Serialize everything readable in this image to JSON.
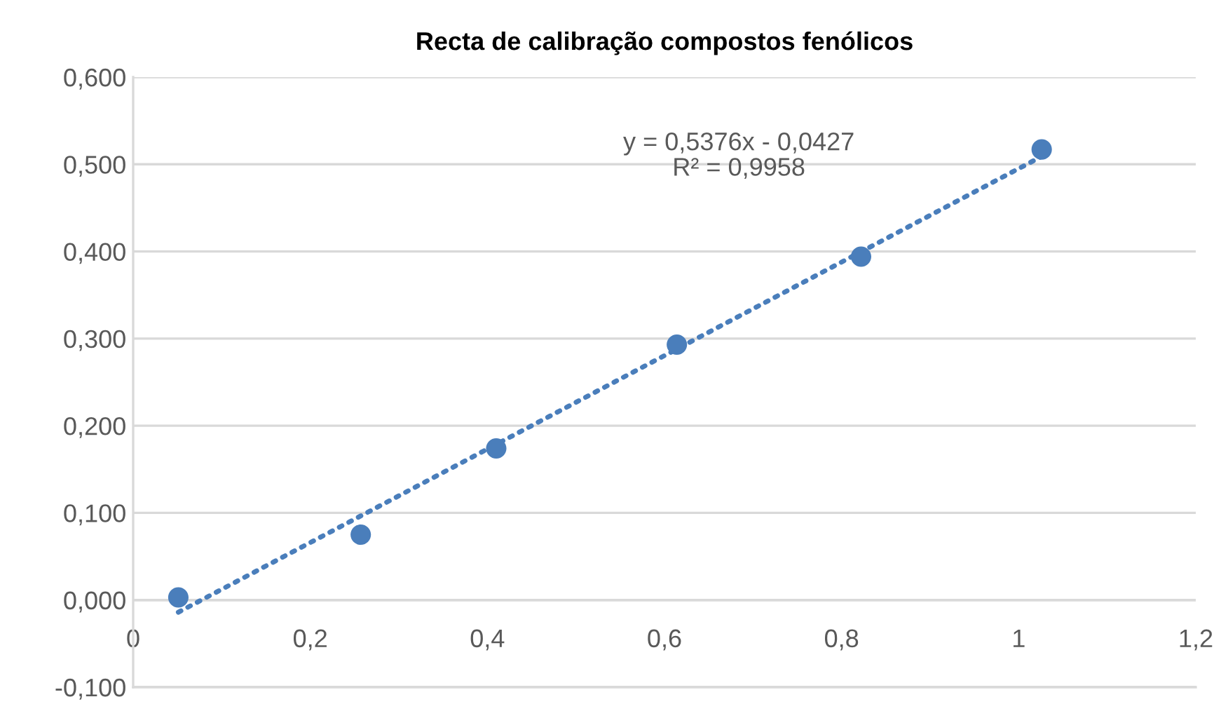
{
  "chart_data": {
    "type": "scatter",
    "title": "Recta de calibração compostos fenólicos",
    "series": [
      {
        "color": "#4a7ebb",
        "marker": "circle",
        "x": [
          0.051,
          0.257,
          0.41,
          0.614,
          0.822,
          1.026
        ],
        "values": [
          0.003,
          0.075,
          0.174,
          0.293,
          0.394,
          0.517
        ]
      },
      {
        "type": "line",
        "color": "#4a7ebb",
        "marker": "none",
        "line_style": "dotted",
        "x": [
          0.051,
          1.026
        ],
        "values": [
          -0.014,
          0.509
        ]
      }
    ],
    "annotations": [
      "y = 0,5376x - 0,0427\nR² = 0,9958"
    ],
    "xlim": [
      0,
      1.2
    ],
    "xticks": [
      0,
      {
        "value": 0.2,
        "label": "0,2"
      },
      {
        "value": 0.4,
        "label": "0,4"
      },
      {
        "value": 0.6,
        "label": "0,6"
      },
      {
        "value": 0.8,
        "label": "0,8"
      },
      1,
      {
        "value": 1.2,
        "label": "1,2"
      }
    ],
    "ylim": [
      -0.1,
      0.6
    ],
    "yticks": [
      {
        "value": -0.1,
        "label": "-0,100"
      },
      {
        "value": 0,
        "label": "0,000"
      },
      {
        "value": 0.1,
        "label": "0,100"
      },
      {
        "value": 0.2,
        "label": "0,200"
      },
      {
        "value": 0.3,
        "label": "0,300"
      },
      {
        "value": 0.4,
        "label": "0,400"
      },
      {
        "value": 0.5,
        "label": "0,500"
      },
      {
        "value": 0.6,
        "label": "0,600"
      }
    ],
    "grid": "y",
    "legend": false
  }
}
